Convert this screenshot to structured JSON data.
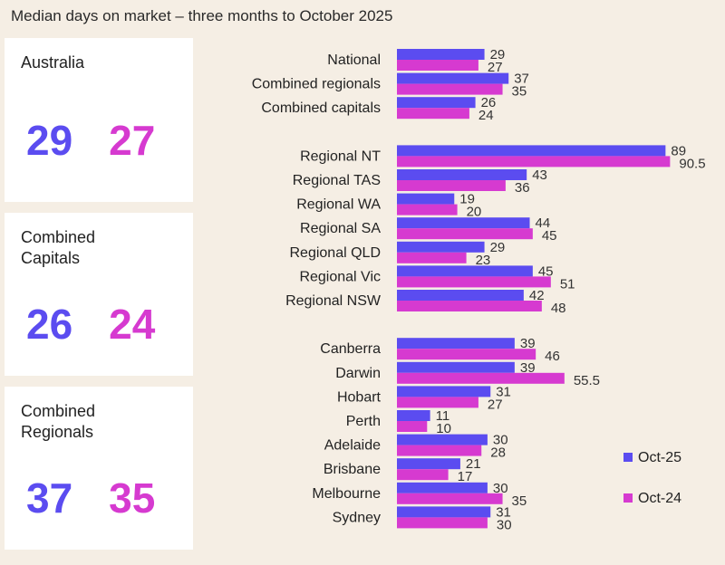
{
  "chart_data": {
    "type": "bar",
    "orientation": "horizontal",
    "title": "Median days on market – three months to October 2025",
    "categories": [
      "National",
      "Combined regionals",
      "Combined capitals",
      "Regional NT",
      "Regional TAS",
      "Regional WA",
      "Regional SA",
      "Regional QLD",
      "Regional Vic",
      "Regional NSW",
      "Canberra",
      "Darwin",
      "Hobart",
      "Perth",
      "Adelaide",
      "Brisbane",
      "Melbourne",
      "Sydney"
    ],
    "groups": [
      [
        0,
        1,
        2
      ],
      [
        3,
        4,
        5,
        6,
        7,
        8,
        9
      ],
      [
        10,
        11,
        12,
        13,
        14,
        15,
        16,
        17
      ]
    ],
    "series": [
      {
        "name": "Oct-25",
        "color": "#5b4cf0",
        "values": [
          29,
          37,
          26,
          89,
          43,
          19,
          44,
          29,
          45,
          42,
          39,
          39,
          31,
          11,
          30,
          21,
          30,
          31
        ]
      },
      {
        "name": "Oct-24",
        "color": "#d63ad0",
        "values": [
          27,
          35,
          24,
          90.5,
          36,
          20,
          45,
          23,
          51,
          48,
          46,
          55.5,
          27,
          10,
          28,
          17,
          35,
          30
        ]
      }
    ],
    "legend_position": "bottom-right",
    "grid": false,
    "xlim": [
      0,
      100
    ]
  },
  "cards": [
    {
      "label": "Australia",
      "oct25": "29",
      "oct24": "27"
    },
    {
      "label": "Combined\nCapitals",
      "oct25": "26",
      "oct24": "24"
    },
    {
      "label": "Combined\nRegionals",
      "oct25": "37",
      "oct24": "35"
    }
  ],
  "background": "#f5eee4"
}
